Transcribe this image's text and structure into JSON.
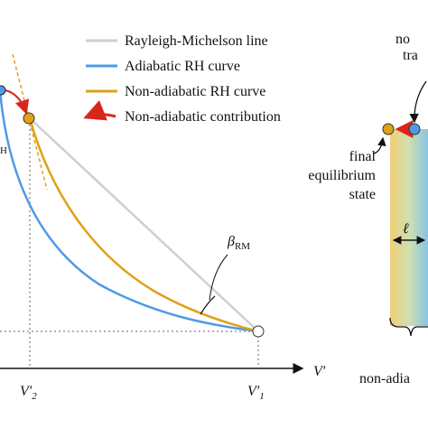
{
  "legend": [
    "Rayleigh-Michelson line",
    "Adiabatic RH curve",
    "Non-adiabatic RH curve",
    "Non-adiabatic contribution"
  ],
  "axis": {
    "x_label": "V′",
    "tick_left": "V′",
    "tick_left_sub": "2",
    "tick_right": "V′",
    "tick_right_sub": "1"
  },
  "angles": {
    "left_sub": "H",
    "rm": "β",
    "rm_sub": "RM"
  },
  "panel": {
    "top_1": "no",
    "top_2": "tra",
    "final_label": [
      "final",
      "equilibrium",
      "state"
    ],
    "length": "ℓ",
    "bottom": "non-adia"
  }
}
